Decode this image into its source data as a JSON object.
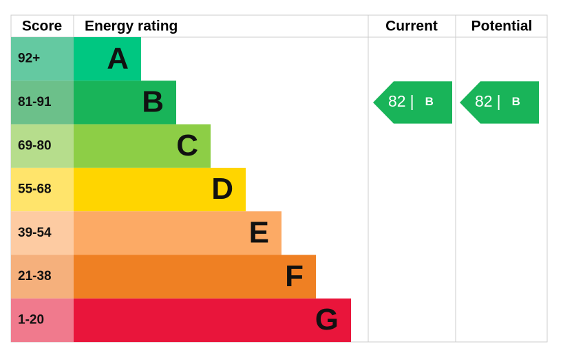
{
  "header": {
    "score": "Score",
    "rating": "Energy rating",
    "current": "Current",
    "potential": "Potential"
  },
  "bands": [
    {
      "score": "92+",
      "letter": "A",
      "color": "#00c781",
      "score_color": "#64c9a1"
    },
    {
      "score": "81-91",
      "letter": "B",
      "color": "#19b459",
      "score_color": "#6cc08a"
    },
    {
      "score": "69-80",
      "letter": "C",
      "color": "#8dce46",
      "score_color": "#b6dd8c"
    },
    {
      "score": "55-68",
      "letter": "D",
      "color": "#ffd500",
      "score_color": "#ffe46b"
    },
    {
      "score": "39-54",
      "letter": "E",
      "color": "#fcaa65",
      "score_color": "#fdcba2"
    },
    {
      "score": "21-38",
      "letter": "F",
      "color": "#ef8023",
      "score_color": "#f5b07c"
    },
    {
      "score": "1-20",
      "letter": "G",
      "color": "#e9153b",
      "score_color": "#f07a8d"
    }
  ],
  "current": {
    "value": 82,
    "separator": "|",
    "band": "B"
  },
  "potential": {
    "value": 82,
    "separator": "|",
    "band": "B"
  }
}
